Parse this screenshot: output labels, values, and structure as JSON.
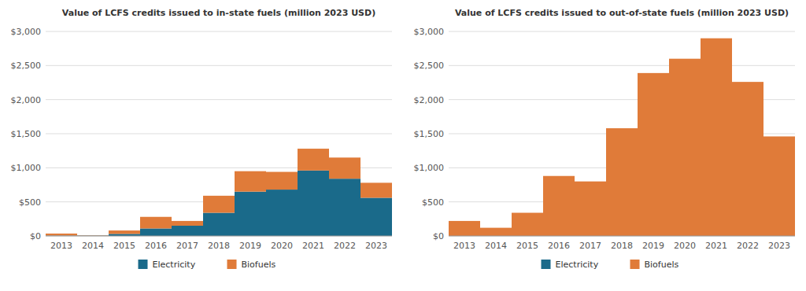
{
  "chart_data": [
    {
      "type": "bar",
      "title": "Value of LCFS credits issued to in-state fuels (million 2023 USD)",
      "categories": [
        "2013",
        "2014",
        "2015",
        "2016",
        "2017",
        "2018",
        "2019",
        "2020",
        "2021",
        "2022",
        "2023"
      ],
      "series": [
        {
          "name": "Electricity",
          "color": "#1a6a8a",
          "values": [
            5,
            5,
            30,
            110,
            150,
            340,
            650,
            680,
            960,
            840,
            560
          ]
        },
        {
          "name": "Biofuels",
          "color": "#e07b39",
          "values": [
            30,
            5,
            50,
            170,
            70,
            250,
            300,
            260,
            320,
            310,
            220
          ]
        }
      ],
      "stacked": true,
      "ylim": [
        0,
        3000
      ],
      "yticks": [
        {
          "value": 0,
          "label": "$0"
        },
        {
          "value": 500,
          "label": "$500"
        },
        {
          "value": 1000,
          "label": "$1,000"
        },
        {
          "value": 1500,
          "label": "$1,500"
        },
        {
          "value": 2000,
          "label": "$2,000"
        },
        {
          "value": 2500,
          "label": "$2,500"
        },
        {
          "value": 3000,
          "label": "$3,000"
        }
      ],
      "grid": true,
      "legend": "bottom"
    },
    {
      "type": "bar",
      "title": "Value of LCFS credits issued to out-of-state fuels (million 2023 USD)",
      "categories": [
        "2013",
        "2014",
        "2015",
        "2016",
        "2017",
        "2018",
        "2019",
        "2020",
        "2021",
        "2022",
        "2023"
      ],
      "series": [
        {
          "name": "Electricity",
          "color": "#1a6a8a",
          "values": [
            0,
            0,
            0,
            0,
            0,
            0,
            0,
            0,
            0,
            0,
            0
          ]
        },
        {
          "name": "Biofuels",
          "color": "#e07b39",
          "values": [
            220,
            120,
            340,
            880,
            800,
            1580,
            2390,
            2600,
            2900,
            2260,
            1460
          ]
        }
      ],
      "stacked": true,
      "ylim": [
        0,
        3000
      ],
      "yticks": [
        {
          "value": 0,
          "label": "$0"
        },
        {
          "value": 500,
          "label": "$500"
        },
        {
          "value": 1000,
          "label": "$1,000"
        },
        {
          "value": 1500,
          "label": "$1,500"
        },
        {
          "value": 2000,
          "label": "$2,000"
        },
        {
          "value": 2500,
          "label": "$2,500"
        },
        {
          "value": 3000,
          "label": "$3,000"
        }
      ],
      "grid": true,
      "legend": "bottom"
    }
  ]
}
